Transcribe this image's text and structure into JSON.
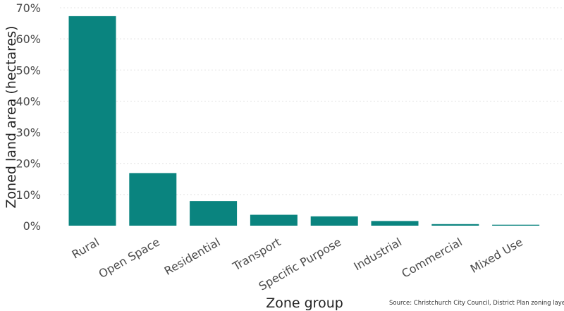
{
  "chart_data": {
    "type": "bar",
    "categories": [
      "Rural",
      "Open Space",
      "Residential",
      "Transport",
      "Specific Purpose",
      "Industrial",
      "Commercial",
      "Mixed Use"
    ],
    "values": [
      67.3,
      16.9,
      7.9,
      3.5,
      3.0,
      1.5,
      0.5,
      0.3
    ],
    "y_ticks": [
      "0%",
      "10%",
      "20%",
      "30%",
      "40%",
      "50%",
      "60%",
      "70%"
    ],
    "ylim": [
      0,
      70
    ],
    "xlabel": "Zone group",
    "ylabel": "Zoned land area (hectares)",
    "source": "Source: Christchurch City Council, District Plan zoning layer",
    "bar_color": "#0a847f",
    "grid": true
  }
}
